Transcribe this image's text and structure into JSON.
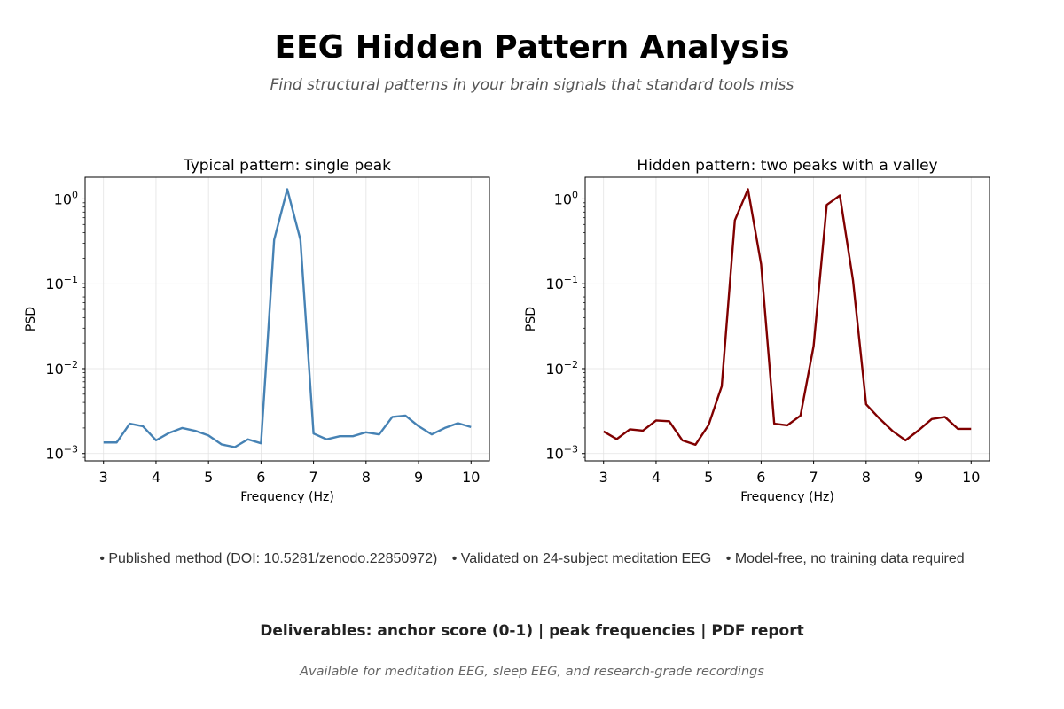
{
  "header": {
    "title": "EEG Hidden Pattern Analysis",
    "subtitle": "Find structural patterns in your brain signals that standard tools miss"
  },
  "chart_data": [
    {
      "type": "line",
      "title": "Typical pattern: single peak",
      "xlabel": "Frequency (Hz)",
      "ylabel": "PSD",
      "yscale": "log",
      "xlim": [
        2.65,
        10.35
      ],
      "ylim": [
        0.00082,
        1.8
      ],
      "xticks": [
        3,
        4,
        5,
        6,
        7,
        8,
        9,
        10
      ],
      "yticks": [
        0.001,
        0.01,
        0.1,
        1
      ],
      "ytick_labels": [
        {
          "base": "10",
          "exp": "−3"
        },
        {
          "base": "10",
          "exp": "−2"
        },
        {
          "base": "10",
          "exp": "−1"
        },
        {
          "base": "10",
          "exp": "0"
        }
      ],
      "grid": true,
      "color": "#4682b4",
      "x": [
        3.0,
        3.25,
        3.5,
        3.75,
        4.0,
        4.25,
        4.5,
        4.75,
        5.0,
        5.25,
        5.5,
        5.75,
        6.0,
        6.25,
        6.5,
        6.75,
        7.0,
        7.25,
        7.5,
        7.75,
        8.0,
        8.25,
        8.5,
        8.75,
        9.0,
        9.25,
        9.5,
        9.75,
        10.0
      ],
      "values": [
        0.00135,
        0.00135,
        0.00225,
        0.0021,
        0.00143,
        0.00175,
        0.002,
        0.00185,
        0.00163,
        0.00128,
        0.00119,
        0.00147,
        0.00132,
        0.33,
        1.3,
        0.33,
        0.00172,
        0.00147,
        0.0016,
        0.0016,
        0.00178,
        0.00168,
        0.0027,
        0.0028,
        0.0021,
        0.00168,
        0.002,
        0.00228,
        0.00205
      ]
    },
    {
      "type": "line",
      "title": "Hidden pattern: two peaks with a valley",
      "xlabel": "Frequency (Hz)",
      "ylabel": "PSD",
      "yscale": "log",
      "xlim": [
        2.65,
        10.35
      ],
      "ylim": [
        0.00082,
        1.8
      ],
      "xticks": [
        3,
        4,
        5,
        6,
        7,
        8,
        9,
        10
      ],
      "yticks": [
        0.001,
        0.01,
        0.1,
        1
      ],
      "ytick_labels": [
        {
          "base": "10",
          "exp": "−3"
        },
        {
          "base": "10",
          "exp": "−2"
        },
        {
          "base": "10",
          "exp": "−1"
        },
        {
          "base": "10",
          "exp": "0"
        }
      ],
      "grid": true,
      "color": "#800000",
      "x": [
        3.0,
        3.25,
        3.5,
        3.75,
        4.0,
        4.25,
        4.5,
        4.75,
        5.0,
        5.25,
        5.5,
        5.75,
        6.0,
        6.25,
        6.5,
        6.75,
        7.0,
        7.25,
        7.5,
        7.75,
        8.0,
        8.25,
        8.5,
        8.75,
        9.0,
        9.25,
        9.5,
        9.75,
        10.0
      ],
      "values": [
        0.00182,
        0.00148,
        0.00193,
        0.00186,
        0.00245,
        0.0024,
        0.00143,
        0.00127,
        0.00217,
        0.0062,
        0.56,
        1.3,
        0.17,
        0.00225,
        0.00215,
        0.0028,
        0.0185,
        0.85,
        1.1,
        0.11,
        0.0038,
        0.0026,
        0.00185,
        0.00143,
        0.00188,
        0.00255,
        0.0027,
        0.00195,
        0.00195
      ]
    }
  ],
  "bullets": [
    "• Published method (DOI: 10.5281/zenodo.22850972)",
    "• Validated on 24-subject meditation EEG",
    "• Model-free, no training data required"
  ],
  "deliverables": "Deliverables: anchor score (0-1)  |  peak frequencies  |  PDF report",
  "footer": "Available for meditation EEG, sleep EEG, and research-grade recordings"
}
